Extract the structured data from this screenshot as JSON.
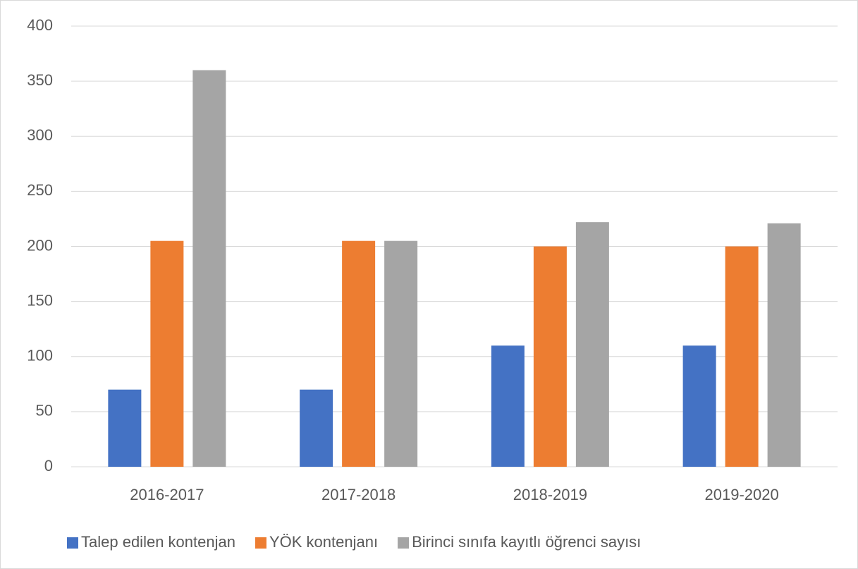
{
  "chart_data": {
    "type": "bar",
    "categories": [
      "2016-2017",
      "2017-2018",
      "2018-2019",
      "2019-2020"
    ],
    "series": [
      {
        "name": "Talep edilen kontenjan",
        "color": "#4472c4",
        "values": [
          70,
          70,
          110,
          110
        ]
      },
      {
        "name": "YÖK kontenjanı",
        "color": "#ed7d31",
        "values": [
          205,
          205,
          200,
          200
        ]
      },
      {
        "name": "Birinci sınıfa kayıtlı öğrenci sayısı",
        "color": "#a5a5a5",
        "values": [
          360,
          205,
          222,
          221
        ]
      }
    ],
    "ylim": [
      0,
      400
    ],
    "yticks": [
      0,
      50,
      100,
      150,
      200,
      250,
      300,
      350,
      400
    ],
    "grid": true,
    "legend": "bottom"
  }
}
